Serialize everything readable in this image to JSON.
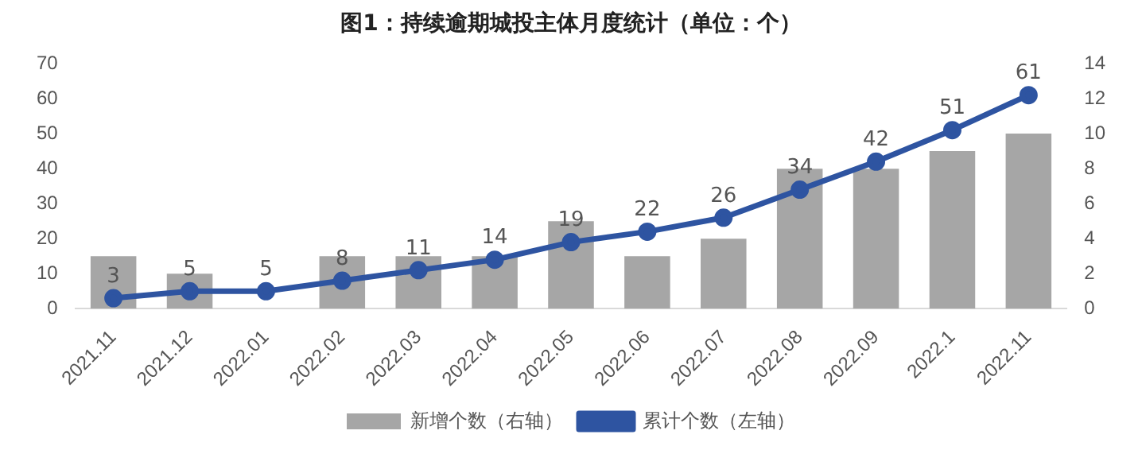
{
  "chart_data": {
    "type": "bar",
    "title": "图1：持续逾期城投主体月度统计（单位：个）",
    "categories": [
      "2021.11",
      "2021.12",
      "2022.01",
      "2022.02",
      "2022.03",
      "2022.04",
      "2022.05",
      "2022.06",
      "2022.07",
      "2022.08",
      "2022.09",
      "2022.1",
      "2022.11"
    ],
    "series": [
      {
        "name": "新增个数（右轴）",
        "axis": "y2",
        "color": "#a6a6a6",
        "values": [
          3,
          2,
          0,
          3,
          3,
          3,
          5,
          3,
          4,
          8,
          8,
          9,
          10
        ]
      },
      {
        "name": "累计个数（左轴）",
        "type": "line",
        "color": "#2e54a1",
        "values": [
          3,
          5,
          5,
          8,
          11,
          14,
          19,
          22,
          26,
          34,
          42,
          51,
          61
        ],
        "value_labels": [
          "3",
          "5",
          "5",
          "8",
          "11",
          "14",
          "19",
          "22",
          "26",
          "34",
          "42",
          "51",
          "61"
        ]
      }
    ],
    "ylim": [
      0,
      70
    ],
    "yticks": [
      0,
      10,
      20,
      30,
      40,
      50,
      60,
      70
    ],
    "y2lim": [
      0,
      14
    ],
    "y2ticks": [
      0,
      2,
      4,
      6,
      8,
      10,
      12,
      14
    ],
    "grid": false,
    "legend": "bottom",
    "marker": "circle",
    "line_style": "solid"
  }
}
